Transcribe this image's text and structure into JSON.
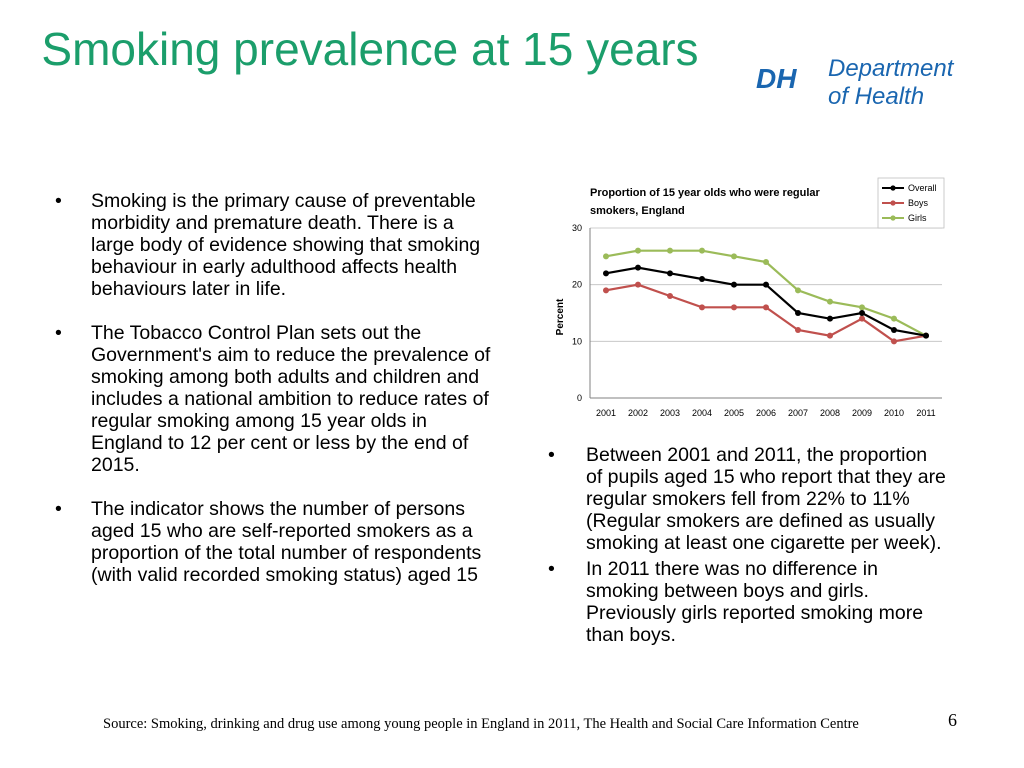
{
  "slide": {
    "title": "Smoking prevalence at 15 years",
    "page_number": "6",
    "source": "Source: Smoking, drinking and drug use among young people in England in 2011, The Health and Social Care Information Centre"
  },
  "logo": {
    "mark": "DH",
    "line1": "Department",
    "line2": "of Health",
    "color": "#1a66b0",
    "swoosh_color": "#1b9e6b"
  },
  "bullet_char": "•",
  "left_bullets": [
    "Smoking is the primary cause of preventable morbidity and premature death.  There is a large body of evidence showing that smoking behaviour in early adulthood affects health behaviours later in life.",
    "The Tobacco Control Plan sets out the Government's aim to reduce the prevalence of smoking among both adults and children and includes a national ambition to reduce rates of regular smoking among 15 year olds in England to 12 per cent or less by the end of 2015.",
    "The indicator shows the number of persons aged 15 who are self-reported smokers as a proportion of the total number of respondents (with valid recorded smoking status) aged 15"
  ],
  "right_bullets": [
    "Between 2001 and 2011, the proportion of pupils aged 15 who report that they are regular smokers fell from 22% to 11% (Regular smokers are defined as usually smoking at least one cigarette per week).",
    "In 2011 there was no difference in smoking between boys and girls. Previously girls reported smoking more than boys."
  ],
  "chart_data": {
    "type": "line",
    "title_line1": "Proportion of 15 year olds who were regular",
    "title_line2": "smokers, England",
    "ylabel": "Percent",
    "xlabel": "",
    "x": [
      "2001",
      "2002",
      "2003",
      "2004",
      "2005",
      "2006",
      "2007",
      "2008",
      "2009",
      "2010",
      "2011"
    ],
    "ylim": [
      0,
      30
    ],
    "yticks": [
      "0",
      "10",
      "20",
      "30"
    ],
    "grid": true,
    "legend": "top-right",
    "series": [
      {
        "name": "Overall",
        "color": "#000000",
        "values": [
          22,
          23,
          22,
          21,
          20,
          20,
          15,
          14,
          15,
          12,
          11
        ]
      },
      {
        "name": "Boys",
        "color": "#c0504d",
        "values": [
          19,
          20,
          18,
          16,
          16,
          16,
          12,
          11,
          14,
          10,
          11
        ]
      },
      {
        "name": "Girls",
        "color": "#9bbb59",
        "values": [
          25,
          26,
          26,
          26,
          25,
          24,
          19,
          17,
          16,
          14,
          11
        ]
      }
    ]
  }
}
